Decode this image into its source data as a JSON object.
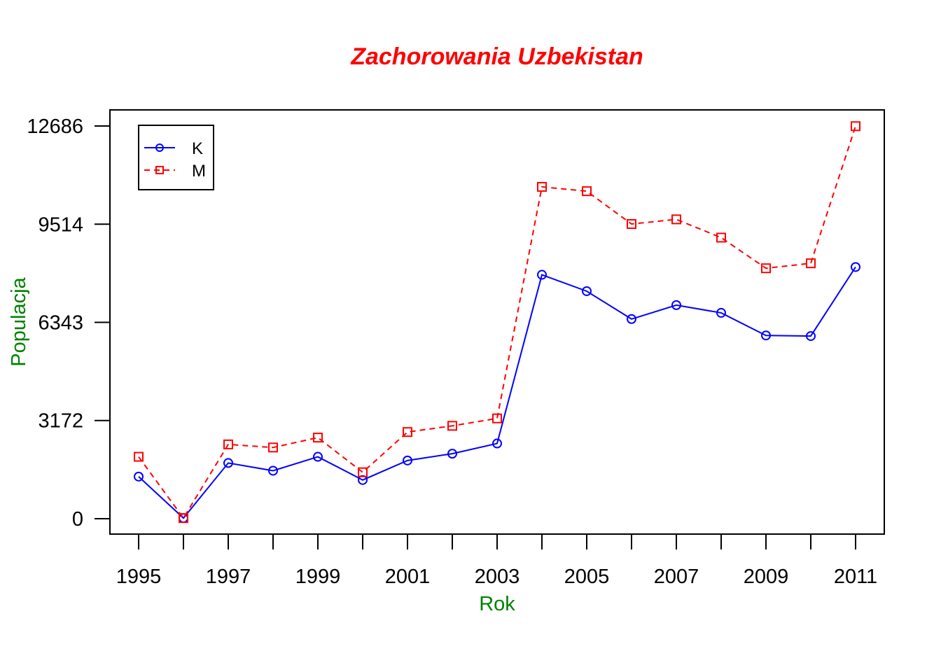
{
  "colors": {
    "title": "#ff0000",
    "axis_label": "#008000",
    "series_K": "#0000ff",
    "series_M": "#ff0000",
    "axis": "#000000"
  },
  "chart_data": {
    "type": "line",
    "title": "Zachorowania Uzbekistan",
    "xlabel": "Rok",
    "ylabel": "Populacja",
    "x": [
      1995,
      1996,
      1997,
      1998,
      1999,
      2000,
      2001,
      2002,
      2003,
      2004,
      2005,
      2006,
      2007,
      2008,
      2009,
      2010,
      2011
    ],
    "xticks": [
      1995,
      1996,
      1997,
      1998,
      1999,
      2000,
      2001,
      2002,
      2003,
      2004,
      2005,
      2006,
      2007,
      2008,
      2009,
      2010,
      2011
    ],
    "xtick_labels": [
      "1995",
      "1997",
      "1999",
      "2001",
      "2003",
      "2005",
      "2007",
      "2009",
      "2011"
    ],
    "xtick_label_values": [
      1995,
      1997,
      1999,
      2001,
      2003,
      2005,
      2007,
      2009,
      2011
    ],
    "xlim": [
      1995,
      2011
    ],
    "yticks": [
      0,
      3172,
      6343,
      9514,
      12686
    ],
    "ytick_labels": [
      "0",
      "3172",
      "6343",
      "9514",
      "12686"
    ],
    "ylim": [
      0,
      12686
    ],
    "grid": false,
    "legend_position": "top-left",
    "series": [
      {
        "name": "K",
        "line": "solid",
        "marker": "circle",
        "values": [
          1360,
          20,
          1800,
          1550,
          2000,
          1250,
          1880,
          2100,
          2430,
          7880,
          7350,
          6450,
          6900,
          6650,
          5920,
          5900,
          8130
        ]
      },
      {
        "name": "M",
        "line": "dashed",
        "marker": "square",
        "values": [
          2000,
          20,
          2400,
          2300,
          2620,
          1500,
          2800,
          3000,
          3240,
          10720,
          10580,
          9520,
          9670,
          9080,
          8090,
          8250,
          12680
        ]
      }
    ]
  }
}
